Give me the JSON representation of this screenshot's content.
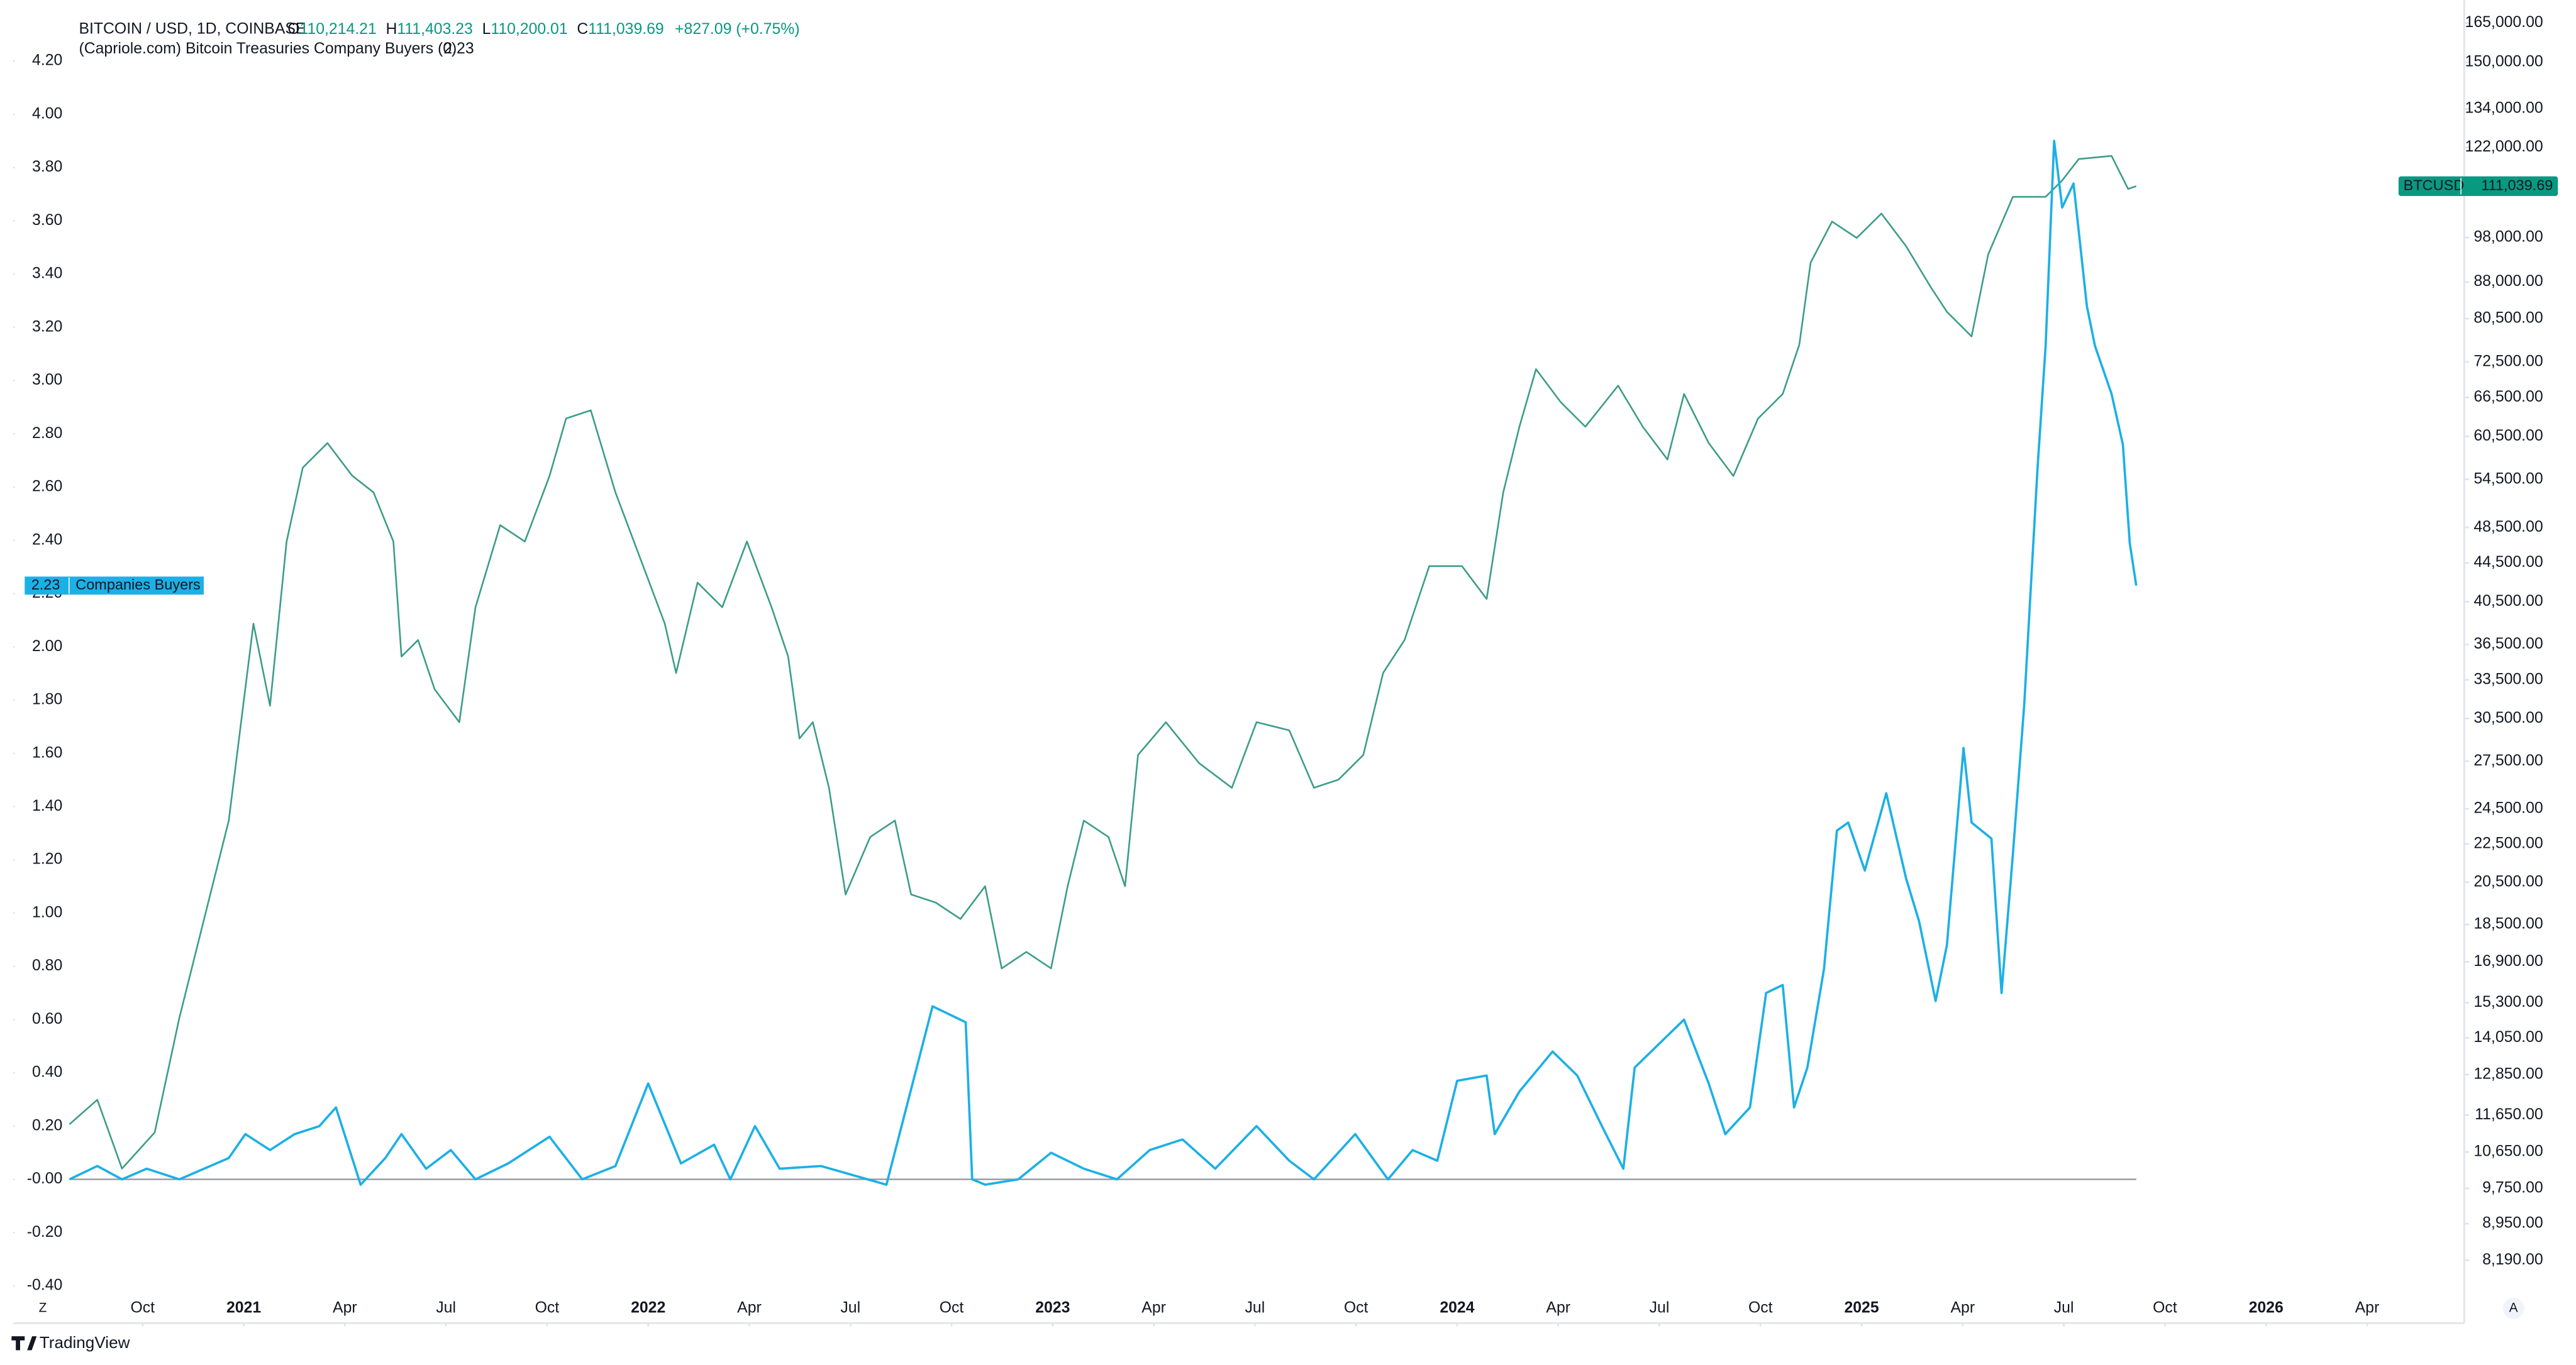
{
  "header": {
    "symbol": "BITCOIN / USD, 1D, COINBASE",
    "ohlc": [
      {
        "key": "O",
        "value": "110,214.21"
      },
      {
        "key": "H",
        "value": "111,403.23"
      },
      {
        "key": "L",
        "value": "110,200.01"
      },
      {
        "key": "C",
        "value": "111,039.69"
      }
    ],
    "change": "+827.09 (+0.75%)",
    "indicator": "(Capriole.com) Bitcoin Treasuries Company Buyers (0)"
  },
  "toolbar": {
    "left_button": "Z",
    "right_button": "A"
  },
  "footer": {
    "brand": "TradingView"
  },
  "chart_data": {
    "type": "line",
    "xlim": [
      2020.43,
      2026.49
    ],
    "xticks": [
      {
        "value": 2020.75,
        "label": "Oct"
      },
      {
        "value": 2021,
        "label": "2021"
      },
      {
        "value": 2021.25,
        "label": "Apr"
      },
      {
        "value": 2021.5,
        "label": "Jul"
      },
      {
        "value": 2021.75,
        "label": "Oct"
      },
      {
        "value": 2022,
        "label": "2022"
      },
      {
        "value": 2022.25,
        "label": "Apr"
      },
      {
        "value": 2022.5,
        "label": "Jul"
      },
      {
        "value": 2022.75,
        "label": "Oct"
      },
      {
        "value": 2023,
        "label": "2023"
      },
      {
        "value": 2023.25,
        "label": "Apr"
      },
      {
        "value": 2023.5,
        "label": "Jul"
      },
      {
        "value": 2023.75,
        "label": "Oct"
      },
      {
        "value": 2024,
        "label": "2024"
      },
      {
        "value": 2024.25,
        "label": "Apr"
      },
      {
        "value": 2024.5,
        "label": "Jul"
      },
      {
        "value": 2024.75,
        "label": "Oct"
      },
      {
        "value": 2025,
        "label": "2025"
      },
      {
        "value": 2025.25,
        "label": "Apr"
      },
      {
        "value": 2025.5,
        "label": "Jul"
      },
      {
        "value": 2025.75,
        "label": "Oct"
      },
      {
        "value": 2026,
        "label": "2026"
      },
      {
        "value": 2026.25,
        "label": "Apr"
      }
    ],
    "ylim": [
      -0.54,
      4.38
    ],
    "yticks": [
      {
        "value": -0.4,
        "label": "-0.40"
      },
      {
        "value": -0.2,
        "label": "-0.20"
      },
      {
        "value": 0,
        "label": "-0.00"
      },
      {
        "value": 0.2,
        "label": "0.20"
      },
      {
        "value": 0.4,
        "label": "0.40"
      },
      {
        "value": 0.6,
        "label": "0.60"
      },
      {
        "value": 0.8,
        "label": "0.80"
      },
      {
        "value": 1,
        "label": "1.00"
      },
      {
        "value": 1.2,
        "label": "1.20"
      },
      {
        "value": 1.4,
        "label": "1.40"
      },
      {
        "value": 1.6,
        "label": "1.60"
      },
      {
        "value": 1.8,
        "label": "1.80"
      },
      {
        "value": 2,
        "label": "2.00"
      },
      {
        "value": 2.2,
        "label": "2.20"
      },
      {
        "value": 2.4,
        "label": "2.40"
      },
      {
        "value": 2.6,
        "label": "2.60"
      },
      {
        "value": 2.8,
        "label": "2.80"
      },
      {
        "value": 3,
        "label": "3.00"
      },
      {
        "value": 3.2,
        "label": "3.20"
      },
      {
        "value": 3.4,
        "label": "3.40"
      },
      {
        "value": 3.6,
        "label": "3.60"
      },
      {
        "value": 3.8,
        "label": "3.80"
      },
      {
        "value": 4,
        "label": "4.00"
      },
      {
        "value": 4.2,
        "label": "4.20"
      }
    ],
    "y2lim": [
      7030,
      169000
    ],
    "y2log": true,
    "y2ticks": [
      {
        "value": 8190,
        "label": "8,190.00"
      },
      {
        "value": 8950,
        "label": "8,950.00"
      },
      {
        "value": 9750,
        "label": "9,750.00"
      },
      {
        "value": 10650,
        "label": "10,650.00"
      },
      {
        "value": 11650,
        "label": "11,650.00"
      },
      {
        "value": 12850,
        "label": "12,850.00"
      },
      {
        "value": 14050,
        "label": "14,050.00"
      },
      {
        "value": 15300,
        "label": "15,300.00"
      },
      {
        "value": 16900,
        "label": "16,900.00"
      },
      {
        "value": 18500,
        "label": "18,500.00"
      },
      {
        "value": 20500,
        "label": "20,500.00"
      },
      {
        "value": 22500,
        "label": "22,500.00"
      },
      {
        "value": 24500,
        "label": "24,500.00"
      },
      {
        "value": 27500,
        "label": "27,500.00"
      },
      {
        "value": 30500,
        "label": "30,500.00"
      },
      {
        "value": 33500,
        "label": "33,500.00"
      },
      {
        "value": 36500,
        "label": "36,500.00"
      },
      {
        "value": 40500,
        "label": "40,500.00"
      },
      {
        "value": 44500,
        "label": "44,500.00"
      },
      {
        "value": 48500,
        "label": "48,500.00"
      },
      {
        "value": 54500,
        "label": "54,500.00"
      },
      {
        "value": 60500,
        "label": "60,500.00"
      },
      {
        "value": 66500,
        "label": "66,500.00"
      },
      {
        "value": 72500,
        "label": "72,500.00"
      },
      {
        "value": 80500,
        "label": "80,500.00"
      },
      {
        "value": 88000,
        "label": "88,000.00"
      },
      {
        "value": 98000,
        "label": "98,000.00"
      },
      {
        "value": 122000,
        "label": "122,000.00"
      },
      {
        "value": 134000,
        "label": "134,000.00"
      },
      {
        "value": 150000,
        "label": "150,000.00"
      },
      {
        "value": 165000,
        "label": "165,000.00"
      }
    ],
    "grid": false,
    "hline": 0,
    "hline_color": "#9598a1",
    "series": [
      {
        "name": "BTCUSD",
        "color": "#3c9c8a",
        "axis": "y2",
        "last_label": "111,039.69",
        "label_color": "#089981",
        "x": [
          2020.569,
          2020.638,
          2020.699,
          2020.78,
          2020.841,
          2020.902,
          2020.963,
          2021.024,
          2021.065,
          2021.106,
          2021.146,
          2021.207,
          2021.268,
          2021.321,
          2021.37,
          2021.39,
          2021.431,
          2021.472,
          2021.533,
          2021.573,
          2021.634,
          2021.695,
          2021.756,
          2021.797,
          2021.858,
          2021.919,
          2021.98,
          2022.041,
          2022.069,
          2022.122,
          2022.183,
          2022.244,
          2022.305,
          2022.346,
          2022.374,
          2022.407,
          2022.447,
          2022.488,
          2022.549,
          2022.61,
          2022.65,
          2022.711,
          2022.772,
          2022.833,
          2022.874,
          2022.935,
          2022.996,
          2023.037,
          2023.077,
          2023.138,
          2023.179,
          2023.211,
          2023.28,
          2023.362,
          2023.443,
          2023.504,
          2023.585,
          2023.646,
          2023.707,
          2023.768,
          2023.817,
          2023.87,
          2023.931,
          2024.012,
          2024.073,
          2024.114,
          2024.154,
          2024.195,
          2024.256,
          2024.317,
          2024.398,
          2024.459,
          2024.52,
          2024.561,
          2024.622,
          2024.683,
          2024.744,
          2024.805,
          2024.846,
          2024.874,
          2024.927,
          2024.988,
          2025.049,
          2025.11,
          2025.171,
          2025.211,
          2025.272,
          2025.313,
          2025.374,
          2025.455,
          2025.496,
          2025.537,
          2025.618,
          2025.659,
          2025.679
        ],
        "values": [
          11390,
          12090,
          10230,
          11170,
          14760,
          18750,
          23810,
          38400,
          31460,
          46870,
          56070,
          59520,
          55000,
          52800,
          46870,
          35450,
          36900,
          32740,
          30230,
          39960,
          48770,
          46870,
          54950,
          63180,
          64450,
          52800,
          45030,
          38400,
          34070,
          42420,
          39960,
          46870,
          39960,
          35450,
          29060,
          30230,
          25780,
          19900,
          22880,
          23810,
          19900,
          19510,
          18750,
          20300,
          16630,
          17310,
          16630,
          20300,
          23810,
          22880,
          20300,
          27920,
          30230,
          27370,
          25780,
          30230,
          29640,
          25780,
          26300,
          27920,
          34070,
          36900,
          44150,
          44150,
          40770,
          52800,
          61930,
          71210,
          65750,
          61930,
          68420,
          61930,
          57190,
          67060,
          59520,
          54950,
          63180,
          67060,
          75580,
          92240,
          101900,
          97930,
          103900,
          95980,
          86900,
          81850,
          77110,
          94100,
          108200,
          108200,
          112600,
          118600,
          119500,
          110300,
          111039.69
        ]
      },
      {
        "name": "Companies Buyers",
        "color": "#1cb0e6",
        "axis": "y",
        "x": [
          2020.569,
          2020.638,
          2020.699,
          2020.76,
          2020.841,
          2020.963,
          2021.004,
          2021.065,
          2021.126,
          2021.187,
          2021.228,
          2021.268,
          2021.289,
          2021.35,
          2021.39,
          2021.451,
          2021.512,
          2021.573,
          2021.654,
          2021.756,
          2021.837,
          2021.919,
          2022.0,
          2022.081,
          2022.163,
          2022.203,
          2022.264,
          2022.325,
          2022.427,
          2022.589,
          2022.703,
          2022.785,
          2022.801,
          2022.833,
          2022.915,
          2022.996,
          2023.077,
          2023.159,
          2023.24,
          2023.321,
          2023.402,
          2023.504,
          2023.585,
          2023.646,
          2023.748,
          2023.829,
          2023.89,
          2023.951,
          2024.0,
          2024.073,
          2024.093,
          2024.154,
          2024.236,
          2024.297,
          2024.358,
          2024.411,
          2024.439,
          2024.5,
          2024.561,
          2024.622,
          2024.663,
          2024.724,
          2024.764,
          2024.805,
          2024.833,
          2024.866,
          2024.907,
          2024.939,
          2024.967,
          2025.008,
          2025.061,
          2025.11,
          2025.142,
          2025.183,
          2025.211,
          2025.252,
          2025.272,
          2025.321,
          2025.346,
          2025.374,
          2025.402,
          2025.435,
          2025.455,
          2025.476,
          2025.496,
          2025.524,
          2025.557,
          2025.577,
          2025.618,
          2025.646,
          2025.663,
          2025.679
        ],
        "values": [
          0,
          0.05,
          0,
          0.04,
          0,
          0.08,
          0.17,
          0.11,
          0.17,
          0.2,
          0.27,
          0.08,
          -0.02,
          0.08,
          0.17,
          0.04,
          0.11,
          0,
          0.06,
          0.16,
          0,
          0.05,
          0.36,
          0.06,
          0.13,
          0,
          0.2,
          0.04,
          0.05,
          -0.02,
          0.65,
          0.59,
          0,
          -0.02,
          0,
          0.1,
          0.04,
          0,
          0.11,
          0.15,
          0.04,
          0.2,
          0.07,
          0,
          0.17,
          0,
          0.11,
          0.07,
          0.37,
          0.39,
          0.17,
          0.33,
          0.48,
          0.39,
          0.2,
          0.04,
          0.42,
          0.51,
          0.6,
          0.36,
          0.17,
          0.27,
          0.7,
          0.73,
          0.27,
          0.42,
          0.79,
          1.31,
          1.34,
          1.16,
          1.45,
          1.13,
          0.97,
          0.67,
          0.88,
          1.62,
          1.34,
          1.28,
          0.7,
          1.22,
          1.78,
          2.67,
          3.13,
          3.9,
          3.65,
          3.74,
          3.28,
          3.13,
          2.95,
          2.76,
          2.39,
          2.23
        ]
      }
    ]
  }
}
